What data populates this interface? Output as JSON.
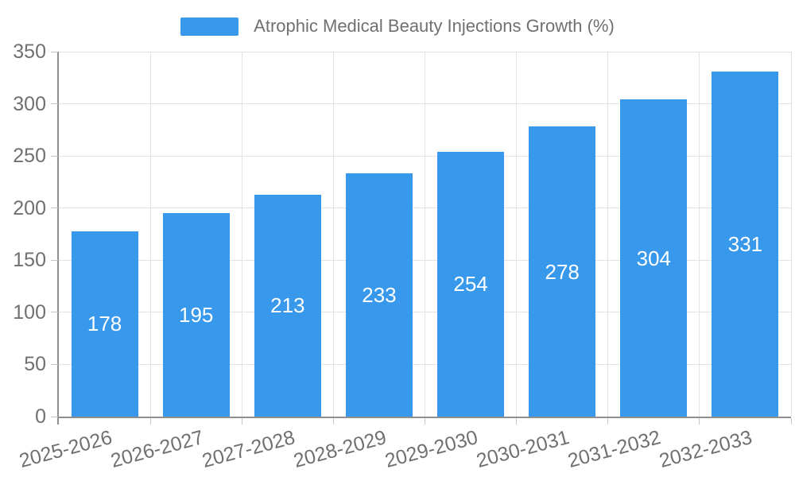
{
  "legend": {
    "label": "Atrophic Medical Beauty Injections Growth (%)"
  },
  "chart_data": {
    "type": "bar",
    "title": "Atrophic Medical Beauty Injections Growth (%)",
    "categories": [
      "2025-2026",
      "2026-2027",
      "2027-2028",
      "2028-2029",
      "2029-2030",
      "2030-2031",
      "2031-2032",
      "2032-2033"
    ],
    "values": [
      178,
      195,
      213,
      233,
      254,
      278,
      304,
      331
    ],
    "series": [
      {
        "name": "Atrophic Medical Beauty Injections Growth (%)",
        "values": [
          178,
          195,
          213,
          233,
          254,
          278,
          304,
          331
        ]
      }
    ],
    "xlabel": "",
    "ylabel": "",
    "ylim": [
      0,
      350
    ],
    "yticks": [
      0,
      50,
      100,
      150,
      200,
      250,
      300,
      350
    ],
    "grid": true,
    "legend_position": "top-center",
    "x_label_rotation_deg": -15,
    "value_label_position": "inside-center",
    "colors": {
      "bar": "#3899ec",
      "value_label": "#ffffff",
      "axis_text": "#707070",
      "legend_text": "#707070",
      "grid_line": "#e3e3e3",
      "axis_line": "#8f8f8f",
      "tick_line": "#c4c4c4",
      "background": "#ffffff"
    }
  }
}
